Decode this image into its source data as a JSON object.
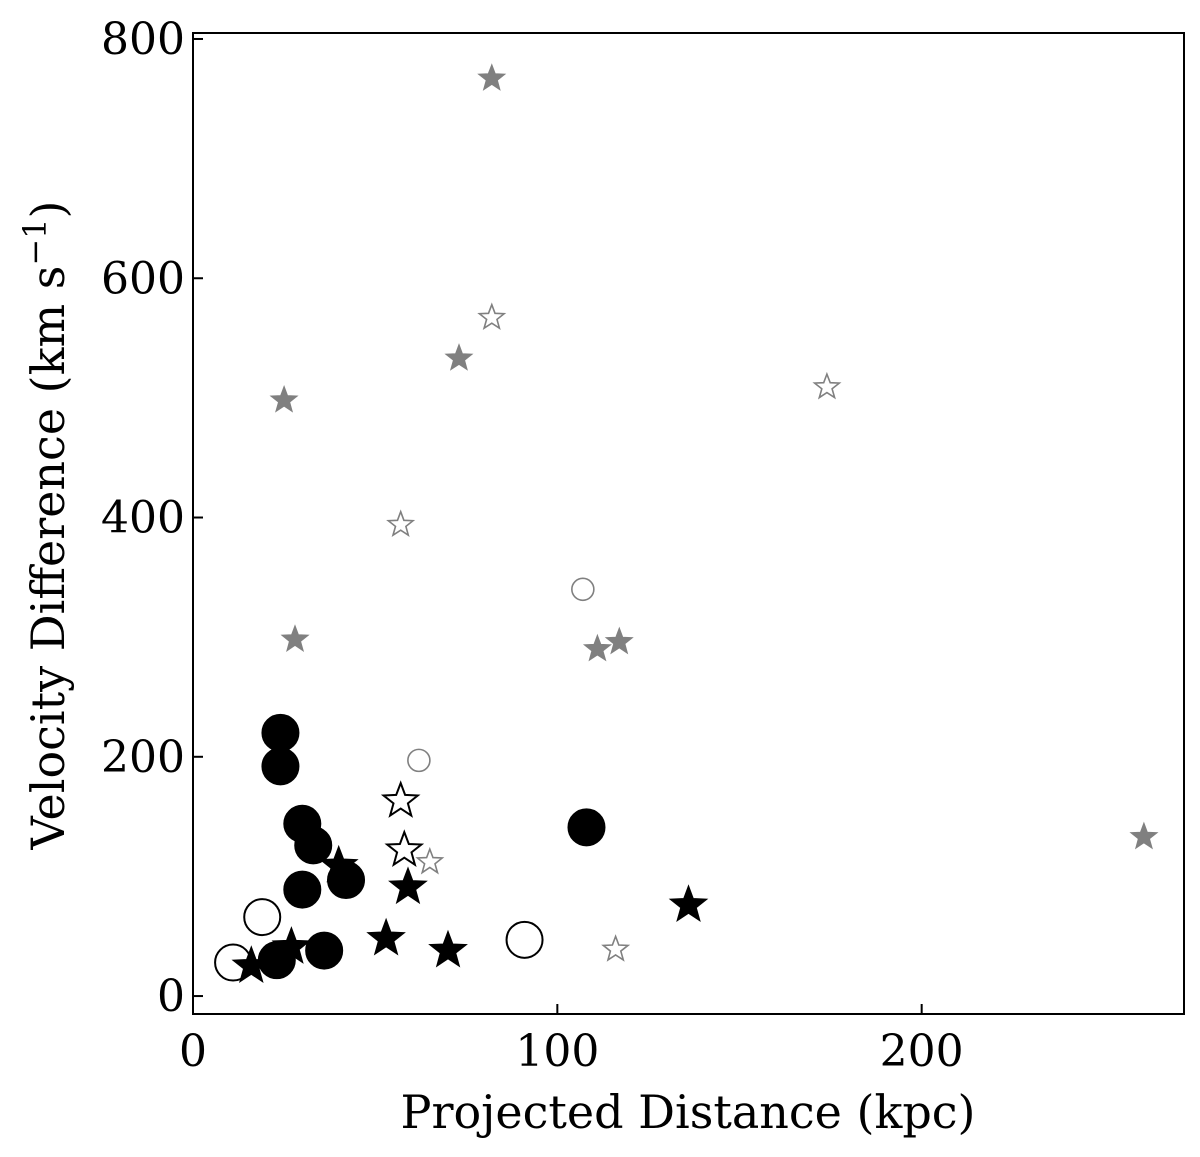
{
  "chart_data": {
    "type": "scatter",
    "xlabel": "Projected Distance (kpc)",
    "ylabel": "Velocity Difference (km s",
    "ylabel_sup": "−1",
    "ylabel_close": ")",
    "xlim": [
      0,
      272
    ],
    "ylim": [
      -15,
      805
    ],
    "xticks": [
      0,
      100,
      200
    ],
    "yticks": [
      0,
      200,
      400,
      600,
      800
    ],
    "grid": false,
    "colors": {
      "black": "#000000",
      "gray": "#808080"
    },
    "series": [
      {
        "marker": "circle",
        "filled": true,
        "color": "#000000",
        "size": "large",
        "points": [
          [
            24,
            220
          ],
          [
            24,
            192
          ],
          [
            30,
            144
          ],
          [
            33,
            126
          ],
          [
            30,
            89
          ],
          [
            42,
            97
          ],
          [
            36,
            38
          ],
          [
            23,
            30
          ],
          [
            108,
            141
          ]
        ]
      },
      {
        "marker": "circle",
        "filled": false,
        "color": "#000000",
        "size": "large",
        "points": [
          [
            19,
            66
          ],
          [
            11,
            28
          ],
          [
            91,
            47
          ]
        ]
      },
      {
        "marker": "star",
        "filled": true,
        "color": "#000000",
        "size": "large",
        "points": [
          [
            40,
            109
          ],
          [
            27,
            41
          ],
          [
            16,
            25
          ],
          [
            53,
            48
          ],
          [
            59,
            91
          ],
          [
            70,
            38
          ],
          [
            136,
            76
          ]
        ]
      },
      {
        "marker": "star",
        "filled": false,
        "color": "#000000",
        "size": "large",
        "points": [
          [
            57,
            163
          ],
          [
            58,
            122
          ]
        ]
      },
      {
        "marker": "star",
        "filled": true,
        "color": "#808080",
        "size": "small",
        "points": [
          [
            82,
            767
          ],
          [
            73,
            533
          ],
          [
            25,
            498
          ],
          [
            28,
            298
          ],
          [
            111,
            290
          ],
          [
            117,
            296
          ],
          [
            261,
            133
          ]
        ]
      },
      {
        "marker": "star",
        "filled": false,
        "color": "#808080",
        "size": "small",
        "points": [
          [
            82,
            567
          ],
          [
            174,
            509
          ],
          [
            57,
            394
          ],
          [
            65,
            112
          ],
          [
            116,
            39
          ]
        ]
      },
      {
        "marker": "circle",
        "filled": false,
        "color": "#808080",
        "size": "small",
        "points": [
          [
            107,
            340
          ],
          [
            62,
            197
          ]
        ]
      }
    ]
  }
}
